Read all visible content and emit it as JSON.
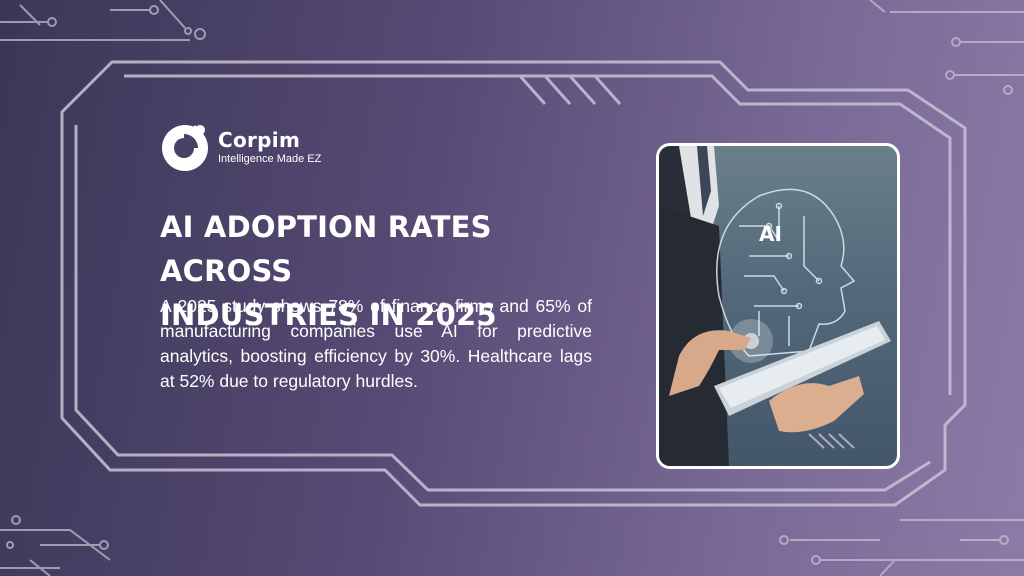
{
  "brand": {
    "name": "Corpim",
    "tagline": "Intelligence Made EZ"
  },
  "headline": {
    "line1": "AI ADOPTION RATES ACROSS",
    "line2": "INDUSTRIES IN 2025"
  },
  "body": "A 2025 study shows 78% of finance firms and 65% of manufacturing companies use AI for predictive analytics, boosting efficiency by 30%. Healthcare lags at 52% due to regulatory hurdles.",
  "photo": {
    "head_label": "AI"
  },
  "colors": {
    "background_start": "#3b3656",
    "background_end": "#8c7ba6",
    "circuit_lines": "#c9c3d6",
    "text": "#ffffff"
  }
}
